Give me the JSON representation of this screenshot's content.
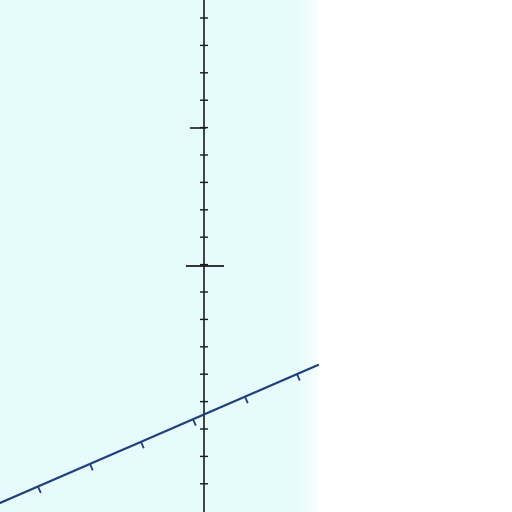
{
  "colors": {
    "panel_fill": "#e6fbfc",
    "background": "#ffffff",
    "axis": "#1a1a1a",
    "line": "#1f3f7a"
  },
  "diagram": {
    "type": "coordinate-axes-with-line",
    "vertical_axis": {
      "ticks_visible": true
    },
    "secondary_axis": {
      "ticks_visible": true
    },
    "line": {
      "style": "solid"
    }
  }
}
